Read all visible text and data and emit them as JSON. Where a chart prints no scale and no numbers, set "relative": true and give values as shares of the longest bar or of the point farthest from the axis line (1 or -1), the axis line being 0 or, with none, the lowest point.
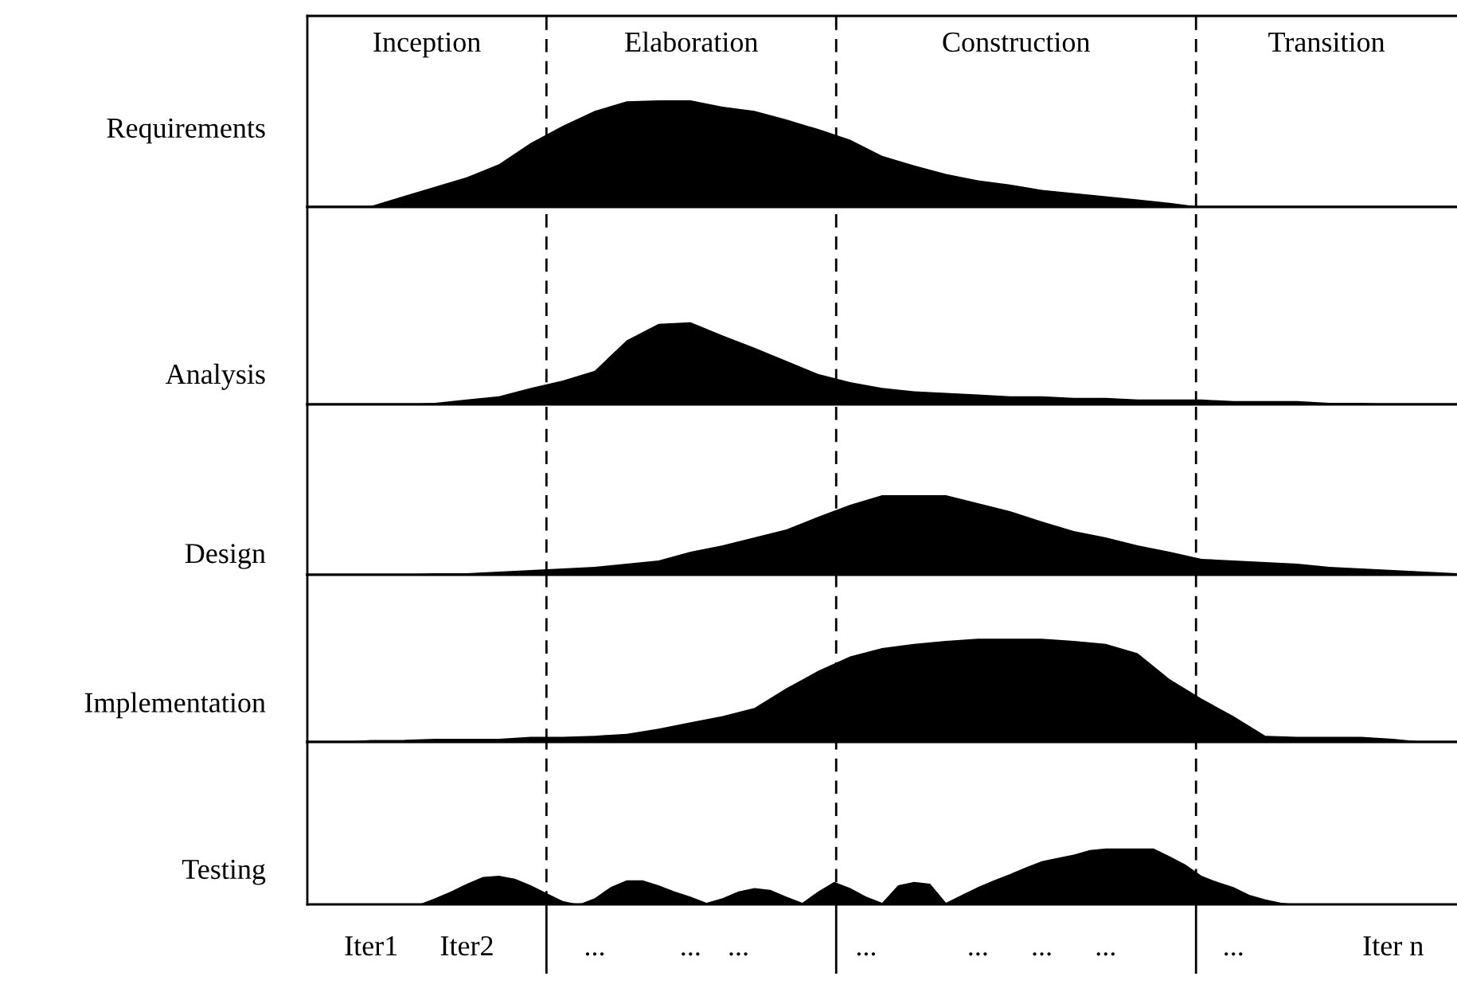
{
  "chart_data": [
    {
      "type": "area",
      "relative": true,
      "ylabel": "Requirements",
      "color": "#000000",
      "tick_labels": false,
      "annotations": [
        "Inception",
        "Elaboration",
        "Construction",
        "Transition"
      ],
      "categories": [
        null,
        null,
        null,
        null,
        null,
        null,
        null,
        null,
        null,
        null,
        null,
        null,
        null,
        null,
        null,
        null,
        null,
        null,
        null,
        null,
        null,
        null,
        null,
        null,
        null,
        null,
        null,
        null,
        null,
        null,
        null,
        null,
        null,
        null,
        null,
        null,
        null
      ],
      "values": [
        0,
        0,
        0.01,
        0.1,
        0.19,
        0.28,
        0.4,
        0.6,
        0.76,
        0.9,
        0.99,
        1,
        1,
        0.94,
        0.9,
        0.82,
        0.73,
        0.63,
        0.48,
        0.39,
        0.31,
        0.25,
        0.21,
        0.16,
        0.13,
        0.1,
        0.07,
        0.04,
        0,
        0,
        0,
        0,
        0,
        0,
        0,
        0,
        0
      ]
    },
    {
      "type": "area",
      "relative": true,
      "ylabel": "Analysis",
      "color": "#000000",
      "tick_labels": false,
      "categories": [
        null,
        null,
        null,
        null,
        null,
        null,
        null,
        null,
        null,
        null,
        null,
        null,
        null,
        null,
        null,
        null,
        null,
        null,
        null,
        null,
        null,
        null,
        null,
        null,
        null,
        null,
        null,
        null,
        null,
        null,
        null,
        null,
        null,
        null,
        null,
        null,
        null
      ],
      "values": [
        0,
        0,
        0,
        0,
        0.02,
        0.06,
        0.1,
        0.2,
        0.29,
        0.41,
        0.78,
        0.98,
        1,
        0.84,
        0.69,
        0.53,
        0.37,
        0.27,
        0.2,
        0.16,
        0.14,
        0.12,
        0.1,
        0.1,
        0.08,
        0.08,
        0.06,
        0.06,
        0.06,
        0.04,
        0.04,
        0.04,
        0.02,
        0.02,
        0,
        0,
        0
      ]
    },
    {
      "type": "area",
      "relative": true,
      "ylabel": "Design",
      "color": "#000000",
      "tick_labels": false,
      "categories": [
        null,
        null,
        null,
        null,
        null,
        null,
        null,
        null,
        null,
        null,
        null,
        null,
        null,
        null,
        null,
        null,
        null,
        null,
        null,
        null,
        null,
        null,
        null,
        null,
        null,
        null,
        null,
        null,
        null,
        null,
        null,
        null,
        null,
        null,
        null,
        null,
        null
      ],
      "values": [
        0,
        0,
        0,
        0,
        0.02,
        0.02,
        0.04,
        0.06,
        0.08,
        0.1,
        0.14,
        0.18,
        0.29,
        0.37,
        0.47,
        0.57,
        0.73,
        0.88,
        1,
        1,
        1,
        0.9,
        0.8,
        0.67,
        0.55,
        0.47,
        0.37,
        0.29,
        0.2,
        0.18,
        0.16,
        0.14,
        0.1,
        0.08,
        0.06,
        0.04,
        0.02
      ]
    },
    {
      "type": "area",
      "relative": true,
      "ylabel": "Implementation",
      "color": "#000000",
      "tick_labels": false,
      "categories": [
        null,
        null,
        null,
        null,
        null,
        null,
        null,
        null,
        null,
        null,
        null,
        null,
        null,
        null,
        null,
        null,
        null,
        null,
        null,
        null,
        null,
        null,
        null,
        null,
        null,
        null,
        null,
        null,
        null,
        null,
        null,
        null,
        null,
        null,
        null,
        null,
        null
      ],
      "values": [
        0,
        0,
        0.02,
        0.02,
        0.03,
        0.03,
        0.03,
        0.05,
        0.05,
        0.06,
        0.08,
        0.13,
        0.19,
        0.25,
        0.33,
        0.52,
        0.69,
        0.83,
        0.91,
        0.95,
        0.98,
        1,
        1,
        1,
        0.98,
        0.95,
        0.86,
        0.61,
        0.42,
        0.25,
        0.06,
        0.05,
        0.05,
        0.05,
        0.03,
        0,
        0
      ]
    },
    {
      "type": "area",
      "relative": true,
      "ylabel": "Testing",
      "color": "#000000",
      "categories": [
        null,
        null,
        null,
        null,
        "Iter1",
        null,
        null,
        null,
        null,
        null,
        "Iter2",
        null,
        null,
        null,
        null,
        null,
        null,
        null,
        "...",
        null,
        null,
        null,
        null,
        null,
        "...",
        null,
        null,
        "...",
        null,
        null,
        null,
        null,
        null,
        null,
        null,
        "...",
        null,
        null,
        null,
        null,
        null,
        null,
        "...",
        null,
        null,
        null,
        "...",
        null,
        null,
        null,
        "...",
        null,
        null,
        null,
        null,
        null,
        null,
        null,
        "...",
        null,
        null,
        null,
        null,
        null,
        null,
        null,
        null,
        null,
        "Iter n",
        null,
        null,
        null,
        null
      ],
      "values": [
        0,
        0,
        0,
        0,
        0,
        0,
        0,
        0,
        0.11,
        0.23,
        0.37,
        0.49,
        0.51,
        0.46,
        0.34,
        0.2,
        0.06,
        0,
        0.11,
        0.31,
        0.43,
        0.43,
        0.34,
        0.23,
        0.14,
        0.03,
        0.11,
        0.23,
        0.29,
        0.26,
        0.14,
        0.03,
        0.23,
        0.4,
        0.29,
        0.14,
        0.03,
        0.34,
        0.4,
        0.37,
        0.03,
        0.17,
        0.31,
        0.43,
        0.54,
        0.66,
        0.77,
        0.83,
        0.89,
        0.97,
        1,
        1,
        1,
        1,
        0.86,
        0.71,
        0.51,
        0.4,
        0.31,
        0.17,
        0.09,
        0.03,
        0,
        0,
        0,
        0,
        0,
        0,
        0,
        0,
        0,
        0,
        0
      ]
    }
  ]
}
